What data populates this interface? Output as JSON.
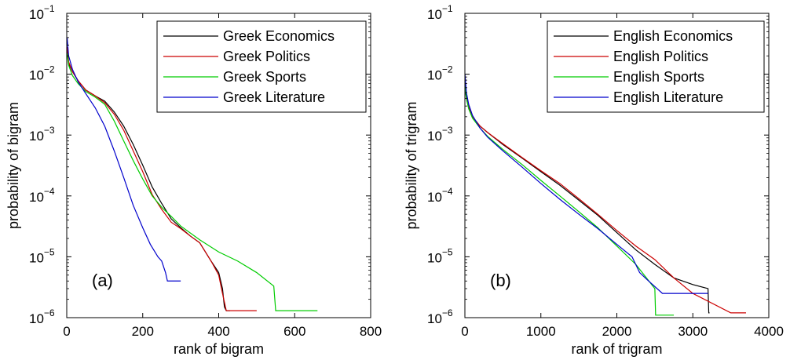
{
  "chart_data": [
    {
      "type": "line",
      "panel_label": "(a)",
      "xlabel": "rank of bigram",
      "ylabel": "probability of bigram",
      "x_scale": "linear",
      "y_scale": "log",
      "xlim": [
        0,
        800
      ],
      "ylim": [
        1e-06,
        0.1
      ],
      "x_ticks": [
        0,
        200,
        400,
        600,
        800
      ],
      "y_ticks": [
        1e-06,
        1e-05,
        0.0001,
        0.001,
        0.01,
        0.1
      ],
      "legend_position": "top-right",
      "grid": false,
      "series": [
        {
          "name": "Greek Economics",
          "color": "#000000",
          "x": [
            1,
            5,
            15,
            30,
            50,
            75,
            100,
            125,
            150,
            175,
            200,
            225,
            250,
            275,
            300,
            325,
            350,
            380,
            400,
            410,
            415,
            420,
            430
          ],
          "y": [
            0.025,
            0.015,
            0.011,
            0.0078,
            0.0055,
            0.0044,
            0.0036,
            0.0024,
            0.0014,
            0.0007,
            0.00032,
            0.00014,
            7.5e-05,
            4.2e-05,
            3e-05,
            2.2e-05,
            1.7e-05,
            8.5e-06,
            5.5e-06,
            3e-06,
            1.5e-06,
            1.3e-06,
            1.3e-06
          ]
        },
        {
          "name": "Greek Politics",
          "color": "#cc0000",
          "x": [
            1,
            5,
            15,
            30,
            50,
            75,
            100,
            125,
            150,
            175,
            200,
            225,
            250,
            275,
            300,
            325,
            350,
            380,
            400,
            410,
            420,
            500
          ],
          "y": [
            0.028,
            0.016,
            0.011,
            0.0078,
            0.0055,
            0.0044,
            0.0034,
            0.0022,
            0.0012,
            0.00055,
            0.00025,
            0.000105,
            6e-05,
            3.7e-05,
            2.9e-05,
            2.2e-05,
            1.7e-05,
            8.5e-06,
            5e-06,
            2.5e-06,
            1.3e-06,
            1.3e-06
          ]
        },
        {
          "name": "Greek Sports",
          "color": "#00cc00",
          "x": [
            1,
            5,
            15,
            30,
            50,
            75,
            100,
            125,
            150,
            175,
            200,
            225,
            250,
            275,
            300,
            350,
            400,
            450,
            500,
            545,
            550,
            660
          ],
          "y": [
            0.022,
            0.014,
            0.0095,
            0.007,
            0.0052,
            0.0042,
            0.0032,
            0.0017,
            0.0008,
            0.00038,
            0.00019,
            0.0001,
            6.5e-05,
            4.6e-05,
            3.2e-05,
            1.9e-05,
            1.2e-05,
            8.5e-06,
            5.5e-06,
            3.3e-06,
            1.3e-06,
            1.3e-06
          ]
        },
        {
          "name": "Greek Literature",
          "color": "#0000cc",
          "x": [
            1,
            5,
            15,
            30,
            50,
            75,
            100,
            125,
            150,
            175,
            200,
            220,
            240,
            250,
            260,
            265,
            280,
            300
          ],
          "y": [
            0.04,
            0.02,
            0.012,
            0.0075,
            0.0048,
            0.0028,
            0.0014,
            0.00055,
            0.0002,
            7e-05,
            3e-05,
            1.6e-05,
            1e-05,
            8.5e-06,
            5.5e-06,
            4e-06,
            4e-06,
            4e-06
          ]
        }
      ]
    },
    {
      "type": "line",
      "panel_label": "(b)",
      "xlabel": "rank of trigram",
      "ylabel": "probability of trigram",
      "x_scale": "linear",
      "y_scale": "log",
      "xlim": [
        0,
        4000
      ],
      "ylim": [
        1e-06,
        0.1
      ],
      "x_ticks": [
        0,
        1000,
        2000,
        3000,
        4000
      ],
      "y_ticks": [
        1e-06,
        1e-05,
        0.0001,
        0.001,
        0.01,
        0.1
      ],
      "legend_position": "top-right",
      "grid": false,
      "series": [
        {
          "name": "English Economics",
          "color": "#000000",
          "x": [
            1,
            20,
            50,
            100,
            200,
            300,
            500,
            750,
            1000,
            1250,
            1500,
            1750,
            2000,
            2250,
            2500,
            2750,
            3000,
            3200,
            3210,
            3220
          ],
          "y": [
            0.006,
            0.004,
            0.0028,
            0.002,
            0.0014,
            0.0011,
            0.0007,
            0.00042,
            0.00025,
            0.00015,
            8.5e-05,
            4.8e-05,
            2.5e-05,
            1.3e-05,
            7.5e-06,
            4.5e-06,
            3.5e-06,
            3e-06,
            1.2e-06,
            1.2e-06
          ]
        },
        {
          "name": "English Politics",
          "color": "#cc0000",
          "x": [
            1,
            20,
            50,
            100,
            200,
            300,
            500,
            750,
            1000,
            1250,
            1500,
            1750,
            2000,
            2250,
            2500,
            2750,
            3000,
            3500,
            3700
          ],
          "y": [
            0.0075,
            0.0045,
            0.003,
            0.002,
            0.0014,
            0.0011,
            0.00072,
            0.00043,
            0.00026,
            0.00016,
            9e-05,
            5e-05,
            2.7e-05,
            1.5e-05,
            9e-06,
            4.5e-06,
            2.5e-06,
            1.2e-06,
            1.2e-06
          ]
        },
        {
          "name": "English Sports",
          "color": "#00cc00",
          "x": [
            1,
            20,
            50,
            100,
            200,
            300,
            500,
            750,
            1000,
            1250,
            1500,
            1750,
            2000,
            2250,
            2500,
            2510,
            2600,
            2750
          ],
          "y": [
            0.007,
            0.004,
            0.0027,
            0.0019,
            0.0013,
            0.00095,
            0.00058,
            0.00033,
            0.00018,
            0.0001,
            5.5e-05,
            3e-05,
            1.5e-05,
            7.5e-06,
            3e-06,
            1.1e-06,
            1.1e-06,
            1.1e-06
          ]
        },
        {
          "name": "English Literature",
          "color": "#0000cc",
          "x": [
            1,
            20,
            50,
            100,
            200,
            300,
            500,
            750,
            1000,
            1250,
            1500,
            1750,
            2000,
            2200,
            2300,
            2400,
            2600,
            3200
          ],
          "y": [
            0.01,
            0.005,
            0.0032,
            0.0021,
            0.0013,
            0.00092,
            0.00055,
            0.0003,
            0.00016,
            8.8e-05,
            5e-05,
            2.9e-05,
            1.6e-05,
            1e-05,
            5.5e-06,
            4.2e-06,
            2.5e-06,
            2.5e-06
          ]
        }
      ]
    }
  ]
}
